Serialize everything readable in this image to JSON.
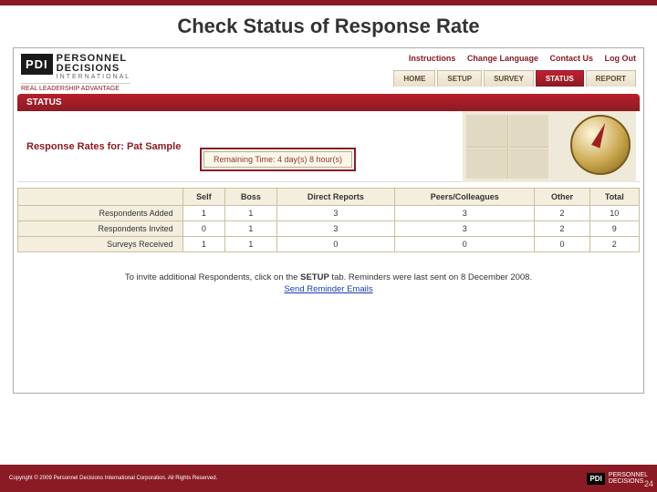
{
  "slide": {
    "title": "Check Status of Response Rate",
    "page_number": "24",
    "accent_color": "#8a1b24"
  },
  "logo": {
    "initials": "PDI",
    "line1": "PERSONNEL",
    "line2": "DECISIONS",
    "line3": "INTERNATIONAL",
    "tagline": "REAL LEADERSHIP ADVANTAGE"
  },
  "util_links": {
    "instructions": "Instructions",
    "change_language": "Change Language",
    "contact_us": "Contact Us",
    "log_out": "Log Out"
  },
  "tabs": {
    "home": "HOME",
    "setup": "SETUP",
    "survey": "SURVEY",
    "status": "STATUS",
    "report": "REPORT",
    "active": "status"
  },
  "status_bar": {
    "label": "STATUS"
  },
  "response": {
    "heading": "Response Rates for: Pat Sample",
    "remaining": "Remaining Time: 4 day(s) 8 hour(s)"
  },
  "table": {
    "columns": [
      "",
      "Self",
      "Boss",
      "Direct Reports",
      "Peers/Colleagues",
      "Other",
      "Total"
    ],
    "rows": [
      {
        "label": "Respondents Added",
        "self": "1",
        "boss": "1",
        "direct": "3",
        "peers": "3",
        "other": "2",
        "total": "10"
      },
      {
        "label": "Respondents Invited",
        "self": "0",
        "boss": "1",
        "direct": "3",
        "peers": "3",
        "other": "2",
        "total": "9"
      },
      {
        "label": "Surveys Received",
        "self": "1",
        "boss": "1",
        "direct": "0",
        "peers": "0",
        "other": "0",
        "total": "2"
      }
    ],
    "header_bg": "#f3eedd",
    "border_color": "#cbbf9f"
  },
  "instruction": {
    "text_pre": "To invite additional Respondents, click on the ",
    "setup_word": "SETUP",
    "text_post": " tab. Reminders were last sent on 8 December 2008.",
    "send_link": "Send Reminder Emails"
  },
  "footer": {
    "copyright": "Copyright © 2009 Personnel Decisions International Corporation. All Rights Reserved."
  }
}
